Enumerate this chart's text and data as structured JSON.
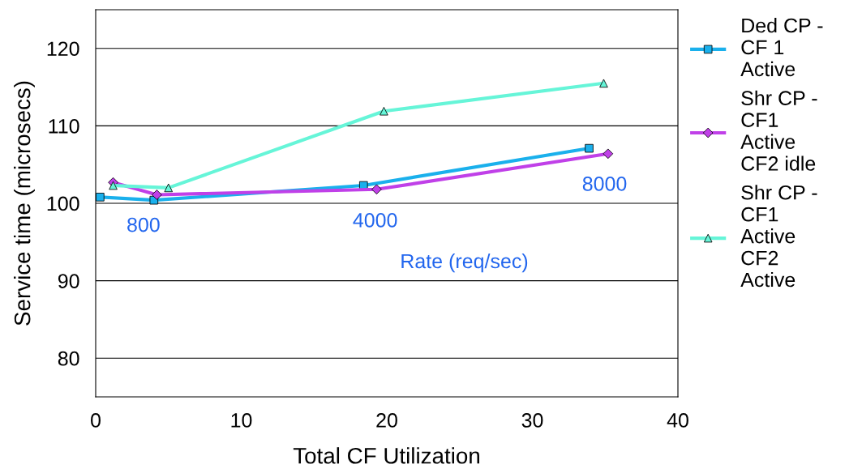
{
  "chart_data": {
    "type": "line",
    "xlabel": "Total CF Utilization",
    "ylabel": "Service time (microsecs)",
    "xlim": [
      0,
      40
    ],
    "xticks": [
      0,
      10,
      20,
      30,
      40
    ],
    "ylim": [
      75,
      125
    ],
    "yticks": [
      80,
      90,
      100,
      110,
      120
    ],
    "grid": "y",
    "legend": "right",
    "series": [
      {
        "name": "Ded CP - CF 1 Active",
        "color": "#1ab0ec",
        "marker": "square",
        "x": [
          0.3,
          4.0,
          18.4,
          33.9
        ],
        "values": [
          100.8,
          100.4,
          102.3,
          107.1
        ]
      },
      {
        "name": "Shr CP - CF1 Active CF2 idle",
        "color": "#c040e8",
        "marker": "diamond",
        "x": [
          1.2,
          4.2,
          19.3,
          35.2
        ],
        "values": [
          102.7,
          101.1,
          101.8,
          106.4
        ]
      },
      {
        "name": "Shr CP - CF1 Active CF2 Active",
        "color": "#66f5d8",
        "marker": "triangle",
        "x": [
          1.2,
          5.0,
          19.8,
          34.9
        ],
        "values": [
          102.3,
          102.0,
          111.9,
          115.5
        ]
      }
    ],
    "annotations": [
      "800",
      "4000",
      "8000",
      "Rate (req/sec)"
    ]
  }
}
